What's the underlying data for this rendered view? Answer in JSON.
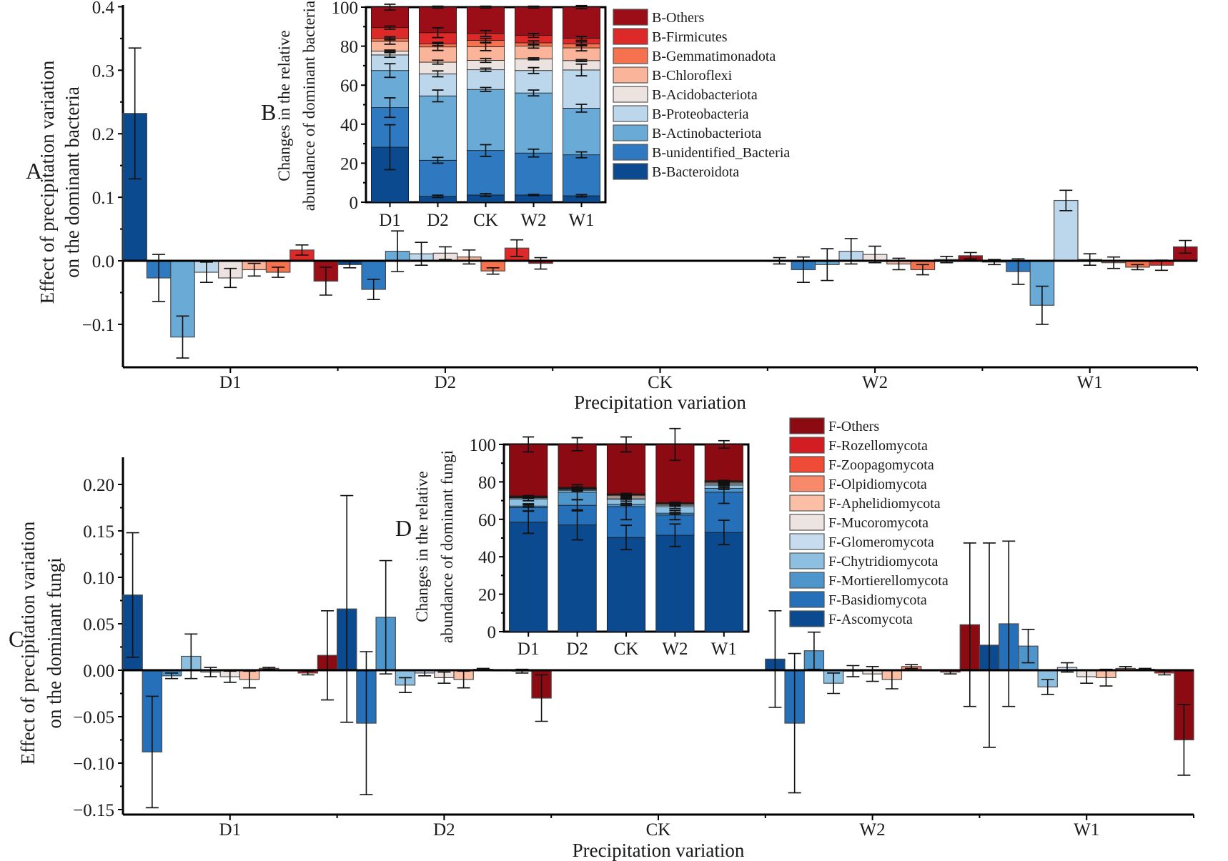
{
  "colors": {
    "bacteria": {
      "B-Bacteroidota": "#0b4a8f",
      "B-unidentified_Bacteria": "#2e79bf",
      "B-Actinobacteriota": "#6aaad6",
      "B-Proteobacteria": "#bcd7ec",
      "B-Acidobacteriota": "#ece2df",
      "B-Chloroflexi": "#f9b49a",
      "B-Gemmatimonadota": "#f6724f",
      "B-Firmicutes": "#dd2a28",
      "B-Others": "#9b0e18"
    },
    "fungi": {
      "F-Ascomycota": "#0b4a8f",
      "F-Basidiomycota": "#2570b8",
      "F-Mortierellomycota": "#4d95cb",
      "F-Chytridiomycota": "#8cbfe0",
      "F-Glomeromycota": "#c8dcef",
      "F-Mucoromycota": "#ede3e1",
      "F-Aphelidiomycota": "#fbbfa6",
      "F-Olpidiomycota": "#f8896a",
      "F-Zoopagomycota": "#ef4b37",
      "F-Rozellomycota": "#d31d22",
      "F-Others": "#8c0b13"
    }
  },
  "chart_data": [
    {
      "id": "A",
      "panel_label": "A",
      "type": "bar",
      "title": "",
      "xlabel": "Precipitation variation",
      "ylabel": [
        "Effect of precipitation variation",
        "on the dominant bacteria"
      ],
      "ylim": [
        -0.16,
        0.4
      ],
      "yticks": [
        -0.1,
        0.0,
        0.1,
        0.2,
        0.3,
        0.4
      ],
      "ytick_labels": [
        "−0.1",
        "0.0",
        "0.1",
        "0.2",
        "0.3",
        "0.4"
      ],
      "categories": [
        "D1",
        "D2",
        "CK",
        "W2",
        "W1"
      ],
      "series_order": [
        "B-Bacteroidota",
        "B-unidentified_Bacteria",
        "B-Actinobacteriota",
        "B-Proteobacteria",
        "B-Acidobacteriota",
        "B-Chloroflexi",
        "B-Gemmatimonadota",
        "B-Firmicutes",
        "B-Others"
      ],
      "values": {
        "D1": [
          0.232,
          -0.027,
          -0.12,
          -0.018,
          -0.027,
          -0.014,
          -0.018,
          0.017,
          -0.032
        ],
        "D2": [
          -0.006,
          -0.045,
          0.015,
          0.011,
          0.012,
          0.006,
          -0.016,
          0.02,
          -0.004
        ],
        "CK": [
          0,
          0,
          0,
          0,
          0,
          0,
          0,
          0,
          0
        ],
        "W2": [
          0.0,
          -0.014,
          -0.006,
          0.015,
          0.01,
          -0.005,
          -0.014,
          0.002,
          0.008
        ],
        "W1": [
          -0.002,
          -0.017,
          -0.07,
          0.095,
          0.002,
          -0.003,
          -0.01,
          -0.007,
          0.022
        ]
      },
      "errors": {
        "D1": [
          0.103,
          0.037,
          0.033,
          0.016,
          0.015,
          0.01,
          0.008,
          0.008,
          0.022
        ],
        "D2": [
          0.005,
          0.016,
          0.032,
          0.018,
          0.01,
          0.011,
          0.005,
          0.013,
          0.009
        ],
        "CK": [
          0,
          0,
          0,
          0,
          0,
          0,
          0,
          0,
          0
        ],
        "W2": [
          0.005,
          0.02,
          0.025,
          0.02,
          0.013,
          0.009,
          0.008,
          0.005,
          0.005
        ],
        "W1": [
          0.004,
          0.02,
          0.03,
          0.016,
          0.009,
          0.009,
          0.004,
          0.008,
          0.01
        ]
      }
    },
    {
      "id": "B",
      "panel_label": "B",
      "type": "bar",
      "stacked": true,
      "ylabel": [
        "Changes in the relative",
        "abundance of dominant bacteria"
      ],
      "ylim": [
        0,
        100
      ],
      "yticks": [
        0,
        20,
        40,
        60,
        80,
        100
      ],
      "categories": [
        "D1",
        "D2",
        "CK",
        "W2",
        "W1"
      ],
      "legend_position": "right",
      "legend": [
        "B-Others",
        "B-Firmicutes",
        "B-Gemmatimonadota",
        "B-Chloroflexi",
        "B-Acidobacteriota",
        "B-Proteobacteria",
        "B-Actinobacteriota",
        "B-unidentified_Bacteria",
        "B-Bacteroidota"
      ],
      "series_order": [
        "B-Bacteroidota",
        "B-unidentified_Bacteria",
        "B-Actinobacteriota",
        "B-Proteobacteria",
        "B-Acidobacteriota",
        "B-Chloroflexi",
        "B-Gemmatimonadota",
        "B-Firmicutes",
        "B-Others"
      ],
      "values": {
        "D1": [
          28.2,
          20.3,
          19.0,
          8.0,
          2.0,
          5.0,
          1.5,
          5.5,
          10.5
        ],
        "D2": [
          3.0,
          18.5,
          33.0,
          11.3,
          6.0,
          7.8,
          1.5,
          5.8,
          13.1
        ],
        "CK": [
          3.7,
          22.8,
          31.3,
          10.1,
          4.8,
          7.0,
          3.3,
          3.5,
          13.5
        ],
        "W2": [
          3.7,
          21.5,
          30.8,
          11.5,
          6.0,
          6.5,
          1.7,
          3.8,
          14.5
        ],
        "W1": [
          3.3,
          21.0,
          23.9,
          19.6,
          4.8,
          6.5,
          2.1,
          2.8,
          16.0
        ]
      },
      "errors": {
        "D1": [
          11.5,
          5.0,
          3.5,
          1.2,
          0.5,
          1.5,
          0.8,
          0.8,
          1.5
        ],
        "D2": [
          0.6,
          1.5,
          3.0,
          1.5,
          1.0,
          1.8,
          0.8,
          2.5,
          0.5
        ],
        "CK": [
          0.7,
          3.0,
          1.0,
          0.8,
          1.0,
          2.0,
          1.0,
          1.5,
          0.5
        ],
        "W2": [
          0.3,
          2.0,
          1.5,
          1.5,
          0.5,
          1.0,
          1.0,
          1.0,
          0.5
        ],
        "W1": [
          0.6,
          1.5,
          2.0,
          3.0,
          0.5,
          1.5,
          1.0,
          1.0,
          0.8
        ]
      }
    },
    {
      "id": "C",
      "panel_label": "C",
      "type": "bar",
      "xlabel": "Precipitation variation",
      "ylabel": [
        "Effect of precipitation variation",
        "on the dominant fungi"
      ],
      "ylim": [
        -0.155,
        0.225
      ],
      "yticks": [
        -0.15,
        -0.1,
        -0.05,
        0.0,
        0.05,
        0.1,
        0.15,
        0.2
      ],
      "ytick_labels": [
        "−0.15",
        "−0.10",
        "−0.05",
        "0.00",
        "0.05",
        "0.10",
        "0.15",
        "0.20"
      ],
      "categories": [
        "D1",
        "D2",
        "CK",
        "W2",
        "W1"
      ],
      "series_order": [
        "F-Ascomycota",
        "F-Basidiomycota",
        "F-Mortierellomycota",
        "F-Chytridiomycota",
        "F-Glomeromycota",
        "F-Mucoromycota",
        "F-Aphelidiomycota",
        "F-Olpidiomycota",
        "F-Zoopagomycota",
        "F-Rozellomycota",
        "F-Others"
      ],
      "values": {
        "D1": [
          0.081,
          -0.088,
          -0.006,
          0.015,
          -0.002,
          -0.007,
          -0.01,
          0.002,
          0.0,
          -0.003,
          0.016
        ],
        "D2": [
          0.066,
          -0.057,
          0.057,
          -0.016,
          -0.003,
          -0.008,
          -0.01,
          0.001,
          0.0,
          -0.001,
          -0.03
        ],
        "CK": [
          0,
          0,
          0,
          0,
          0,
          0,
          0,
          0,
          0,
          0,
          0
        ],
        "W2": [
          0.012,
          -0.057,
          0.021,
          -0.014,
          -0.001,
          -0.004,
          -0.01,
          0.004,
          0.0,
          -0.002,
          0.049
        ],
        "W1": [
          0.027,
          0.05,
          0.026,
          -0.018,
          0.003,
          -0.007,
          -0.008,
          0.002,
          0.001,
          -0.003,
          -0.075
        ]
      },
      "errors": {
        "D1": [
          0.067,
          0.06,
          0.003,
          0.024,
          0.005,
          0.006,
          0.009,
          0.001,
          0.0,
          0.002,
          0.048
        ],
        "D2": [
          0.122,
          0.077,
          0.061,
          0.008,
          0.003,
          0.006,
          0.009,
          0.001,
          0.0,
          0.002,
          0.025
        ],
        "CK": [
          0,
          0,
          0,
          0,
          0,
          0,
          0,
          0,
          0,
          0,
          0
        ],
        "W2": [
          0.052,
          0.075,
          0.02,
          0.011,
          0.006,
          0.008,
          0.01,
          0.002,
          0.0,
          0.002,
          0.088
        ],
        "W1": [
          0.11,
          0.089,
          0.018,
          0.008,
          0.005,
          0.007,
          0.009,
          0.002,
          0.001,
          0.002,
          0.038
        ]
      }
    },
    {
      "id": "D",
      "panel_label": "D",
      "type": "bar",
      "stacked": true,
      "ylabel": [
        "Changes in the relative",
        "abundance of dominant fungi"
      ],
      "ylim": [
        0,
        100
      ],
      "yticks": [
        0,
        20,
        40,
        60,
        80,
        100
      ],
      "categories": [
        "D1",
        "D2",
        "CK",
        "W2",
        "W1"
      ],
      "legend_position": "right",
      "legend": [
        "F-Others",
        "F-Rozellomycota",
        "F-Zoopagomycota",
        "F-Olpidiomycota",
        "F-Aphelidiomycota",
        "F-Mucoromycota",
        "F-Glomeromycota",
        "F-Chytridiomycota",
        "F-Mortierellomycota",
        "F-Basidiomycota",
        "F-Ascomycota"
      ],
      "series_order": [
        "F-Ascomycota",
        "F-Basidiomycota",
        "F-Mortierellomycota",
        "F-Chytridiomycota",
        "F-Glomeromycota",
        "F-Mucoromycota",
        "F-Aphelidiomycota",
        "F-Olpidiomycota",
        "F-Zoopagomycota",
        "F-Rozellomycota",
        "F-Others"
      ],
      "values": {
        "D1": [
          58.5,
          7.8,
          0.8,
          3.8,
          0.5,
          0.3,
          0.3,
          0.2,
          0.1,
          0.2,
          27.5
        ],
        "D2": [
          57.0,
          10.5,
          7.0,
          1.0,
          0.4,
          0.3,
          0.3,
          0.2,
          0.1,
          0.3,
          23.0
        ],
        "CK": [
          50.3,
          16.5,
          1.2,
          2.5,
          0.8,
          0.7,
          0.8,
          0.3,
          0.2,
          0.3,
          26.4
        ],
        "W2": [
          51.5,
          10.8,
          1.0,
          3.5,
          0.7,
          0.5,
          0.4,
          0.2,
          0.1,
          0.2,
          31.1
        ],
        "W1": [
          53.0,
          21.5,
          2.0,
          1.8,
          0.7,
          0.5,
          0.5,
          0.2,
          0.1,
          0.3,
          19.4
        ]
      },
      "errors": {
        "D1": [
          6.0,
          2.0,
          0.5,
          1.0,
          0.3,
          0.2,
          0.2,
          0.1,
          0.1,
          0.2,
          4.0
        ],
        "D2": [
          8.0,
          3.0,
          4.0,
          0.5,
          0.3,
          0.2,
          0.2,
          0.1,
          0.1,
          0.2,
          3.5
        ],
        "CK": [
          6.5,
          7.0,
          0.5,
          0.8,
          0.5,
          0.5,
          0.5,
          0.2,
          0.1,
          0.2,
          4.0
        ],
        "W2": [
          6.0,
          2.5,
          0.5,
          1.0,
          0.5,
          0.3,
          0.3,
          0.1,
          0.1,
          0.2,
          8.5
        ],
        "W1": [
          6.5,
          6.0,
          0.5,
          0.5,
          0.5,
          0.3,
          0.3,
          0.1,
          0.1,
          0.2,
          2.0
        ]
      }
    }
  ]
}
